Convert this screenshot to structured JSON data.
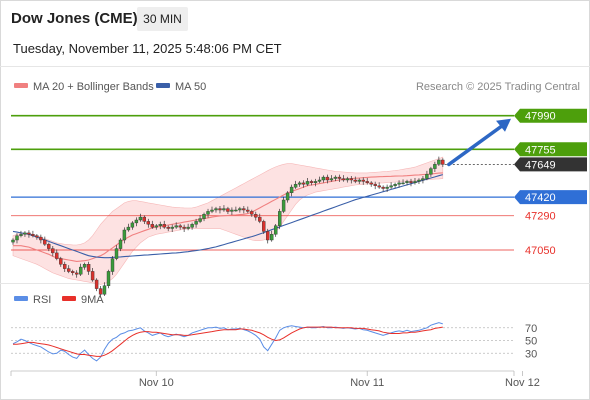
{
  "header": {
    "title": "Dow Jones (CME)",
    "interval": "30 MIN",
    "datetime": "Tuesday, November 11, 2025 5:48:06 PM CET"
  },
  "legend": {
    "ma20": "MA 20 + Bollinger Bands",
    "ma50": "MA 50",
    "credit": "Research © 2025 Trading Central"
  },
  "colors": {
    "support_red": "#e8302a",
    "resistance_green": "#4d9f0c",
    "pivot_blue": "#2f6fd6",
    "ma20": "#f08080",
    "ma50": "#3a5fa8",
    "band_fill": "#fde2e2",
    "candle_up": "#3a9b3a",
    "candle_down": "#d9302c",
    "rsi": "#5b8ee6",
    "rsi_ma": "#e8302a",
    "arrow": "#2d67c4",
    "last_price_bg": "#333333"
  },
  "chart_data": [
    {
      "type": "candlestick",
      "ylim": [
        46700,
        48100
      ],
      "x_tick_labels": [
        "Nov 10",
        "Nov 11",
        "Nov 12"
      ],
      "x_tick_index": [
        36,
        89,
        128
      ],
      "levels": [
        {
          "label": "47990",
          "value": 47990,
          "kind": "resistance"
        },
        {
          "label": "47755",
          "value": 47755,
          "kind": "resistance"
        },
        {
          "label": "47649",
          "value": 47649,
          "kind": "last"
        },
        {
          "label": "47420",
          "value": 47420,
          "kind": "pivot"
        },
        {
          "label": "47290",
          "value": 47290,
          "kind": "support"
        },
        {
          "label": "47050",
          "value": 47050,
          "kind": "support"
        }
      ],
      "close_series": [
        47120,
        47150,
        47160,
        47170,
        47160,
        47150,
        47140,
        47120,
        47090,
        47060,
        47030,
        46990,
        46950,
        46920,
        46900,
        46890,
        46880,
        46930,
        46950,
        46900,
        46840,
        46780,
        46740,
        46800,
        46900,
        46990,
        47060,
        47120,
        47190,
        47210,
        47240,
        47260,
        47280,
        47250,
        47230,
        47210,
        47220,
        47230,
        47210,
        47200,
        47210,
        47220,
        47210,
        47200,
        47210,
        47230,
        47250,
        47270,
        47300,
        47320,
        47330,
        47340,
        47330,
        47340,
        47320,
        47330,
        47330,
        47340,
        47330,
        47320,
        47300,
        47280,
        47250,
        47180,
        47120,
        47160,
        47220,
        47320,
        47400,
        47450,
        47490,
        47510,
        47520,
        47510,
        47530,
        47520,
        47530,
        47540,
        47560,
        47540,
        47550,
        47560,
        47550,
        47540,
        47550,
        47540,
        47530,
        47540,
        47530,
        47520,
        47510,
        47500,
        47490,
        47480,
        47490,
        47500,
        47510,
        47520,
        47520,
        47530,
        47520,
        47530,
        47540,
        47550,
        47580,
        47620,
        47650,
        47680,
        47649
      ],
      "ma20": [
        47080,
        47080,
        47080,
        47075,
        47070,
        47060,
        47050,
        47040,
        47030,
        47020,
        47005,
        46995,
        46990,
        46985,
        46980,
        46975,
        46970,
        46972,
        46975,
        46980,
        46990,
        47000,
        47010,
        47025,
        47045,
        47065,
        47085,
        47105,
        47125,
        47140,
        47155,
        47165,
        47175,
        47185,
        47195,
        47205,
        47210,
        47215,
        47220,
        47225,
        47230,
        47235,
        47240,
        47245,
        47250,
        47255,
        47260,
        47265,
        47270,
        47275,
        47280,
        47285,
        47288,
        47290,
        47292,
        47294,
        47296,
        47298,
        47300,
        47305,
        47315,
        47330,
        47345,
        47360,
        47375,
        47390,
        47405,
        47420,
        47435,
        47450,
        47460,
        47470,
        47480,
        47490,
        47500,
        47505,
        47510,
        47515,
        47520,
        47525,
        47530,
        47535,
        47540,
        47545,
        47548,
        47550,
        47552,
        47554,
        47556,
        47558,
        47560,
        47562,
        47563,
        47564,
        47565,
        47566,
        47567,
        47568,
        47569,
        47570,
        47572,
        47574,
        47576,
        47578,
        47580,
        47582,
        47585,
        47588,
        47590
      ],
      "bollinger_upper": [
        47150,
        47160,
        47170,
        47170,
        47165,
        47160,
        47150,
        47140,
        47130,
        47120,
        47110,
        47100,
        47095,
        47090,
        47088,
        47086,
        47085,
        47090,
        47100,
        47120,
        47150,
        47190,
        47230,
        47260,
        47290,
        47320,
        47340,
        47360,
        47380,
        47390,
        47395,
        47395,
        47390,
        47385,
        47380,
        47375,
        47370,
        47365,
        47360,
        47355,
        47350,
        47348,
        47346,
        47345,
        47344,
        47345,
        47350,
        47360,
        47370,
        47380,
        47395,
        47410,
        47425,
        47440,
        47455,
        47470,
        47485,
        47500,
        47515,
        47530,
        47545,
        47560,
        47575,
        47590,
        47605,
        47620,
        47632,
        47642,
        47650,
        47655,
        47655,
        47650,
        47645,
        47640,
        47635,
        47630,
        47625,
        47620,
        47615,
        47610,
        47605,
        47600,
        47598,
        47596,
        47594,
        47592,
        47590,
        47590,
        47590,
        47590,
        47592,
        47594,
        47596,
        47598,
        47600,
        47603,
        47606,
        47610,
        47615,
        47620,
        47625,
        47630,
        47640,
        47650,
        47660,
        47670,
        47680,
        47690,
        47700
      ],
      "bollinger_lower": [
        47010,
        47000,
        46990,
        46980,
        46970,
        46960,
        46950,
        46935,
        46920,
        46905,
        46890,
        46880,
        46870,
        46860,
        46850,
        46845,
        46840,
        46835,
        46830,
        46825,
        46820,
        46815,
        46810,
        46815,
        46830,
        46850,
        46880,
        46920,
        46960,
        47000,
        47040,
        47070,
        47100,
        47120,
        47140,
        47150,
        47160,
        47165,
        47170,
        47175,
        47180,
        47185,
        47190,
        47195,
        47198,
        47200,
        47200,
        47200,
        47200,
        47200,
        47200,
        47200,
        47200,
        47190,
        47180,
        47170,
        47160,
        47150,
        47140,
        47130,
        47120,
        47115,
        47115,
        47120,
        47130,
        47150,
        47180,
        47210,
        47250,
        47290,
        47330,
        47370,
        47400,
        47420,
        47435,
        47445,
        47455,
        47460,
        47465,
        47470,
        47475,
        47480,
        47485,
        47490,
        47495,
        47500,
        47505,
        47508,
        47510,
        47512,
        47514,
        47516,
        47518,
        47520,
        47522,
        47524,
        47526,
        47528,
        47530,
        47532,
        47534,
        47536,
        47538,
        47540,
        47542,
        47544,
        47546,
        47548,
        47550
      ],
      "ma50": [
        47180,
        47175,
        47170,
        47165,
        47160,
        47150,
        47140,
        47130,
        47120,
        47110,
        47100,
        47090,
        47080,
        47070,
        47060,
        47050,
        47040,
        47030,
        47020,
        47010,
        47005,
        47000,
        46998,
        46996,
        46996,
        46998,
        47000,
        47002,
        47004,
        47006,
        47008,
        47010,
        47012,
        47014,
        47016,
        47018,
        47020,
        47022,
        47024,
        47026,
        47028,
        47030,
        47032,
        47035,
        47038,
        47042,
        47046,
        47050,
        47055,
        47060,
        47066,
        47072,
        47080,
        47088,
        47096,
        47104,
        47112,
        47120,
        47128,
        47136,
        47144,
        47152,
        47162,
        47172,
        47182,
        47192,
        47202,
        47212,
        47222,
        47232,
        47242,
        47252,
        47262,
        47272,
        47282,
        47292,
        47302,
        47312,
        47322,
        47332,
        47342,
        47352,
        47362,
        47372,
        47382,
        47392,
        47402,
        47410,
        47418,
        47426,
        47434,
        47442,
        47450,
        47458,
        47466,
        47474,
        47482,
        47490,
        47498,
        47506,
        47514,
        47522,
        47530,
        47538,
        47546,
        47554,
        47562,
        47570,
        47578
      ]
    },
    {
      "type": "line",
      "name": "RSI",
      "legend": [
        "RSI",
        "9MA"
      ],
      "ylim": [
        10,
        90
      ],
      "y_tick_labels": [
        "70",
        "50",
        "30"
      ],
      "y_tick_values": [
        70,
        50,
        30
      ],
      "rsi": [
        45,
        48,
        52,
        50,
        47,
        44,
        42,
        40,
        36,
        32,
        29,
        30,
        35,
        33,
        28,
        24,
        22,
        30,
        35,
        28,
        22,
        18,
        24,
        36,
        46,
        52,
        55,
        60,
        62,
        65,
        66,
        68,
        70,
        65,
        62,
        58,
        60,
        62,
        58,
        56,
        58,
        60,
        58,
        56,
        58,
        62,
        64,
        66,
        68,
        70,
        70,
        71,
        69,
        70,
        67,
        68,
        68,
        69,
        67,
        65,
        62,
        58,
        52,
        40,
        34,
        44,
        54,
        66,
        70,
        72,
        73,
        72,
        71,
        70,
        71,
        70,
        70,
        71,
        72,
        70,
        70,
        71,
        70,
        69,
        70,
        69,
        68,
        69,
        67,
        66,
        64,
        62,
        60,
        58,
        60,
        62,
        64,
        65,
        64,
        66,
        64,
        65,
        66,
        68,
        70,
        74,
        76,
        78,
        76
      ],
      "rsi_ma": [
        44,
        44,
        45,
        46,
        47,
        47,
        46,
        45,
        44,
        43,
        41,
        39,
        37,
        35,
        33,
        31,
        29,
        28,
        28,
        27,
        26,
        25,
        25,
        27,
        30,
        34,
        39,
        44,
        49,
        54,
        58,
        61,
        63,
        64,
        64,
        63,
        63,
        62,
        61,
        60,
        59,
        59,
        59,
        58,
        58,
        59,
        60,
        61,
        62,
        63,
        64,
        65,
        66,
        67,
        67,
        67,
        67,
        68,
        68,
        67,
        66,
        64,
        62,
        59,
        55,
        52,
        50,
        51,
        54,
        58,
        62,
        65,
        68,
        70,
        71,
        71,
        71,
        71,
        71,
        71,
        71,
        70,
        70,
        70,
        70,
        70,
        69,
        69,
        69,
        68,
        67,
        66,
        65,
        63,
        62,
        61,
        61,
        61,
        62,
        62,
        63,
        63,
        64,
        65,
        66,
        67,
        69,
        70,
        71
      ]
    }
  ]
}
